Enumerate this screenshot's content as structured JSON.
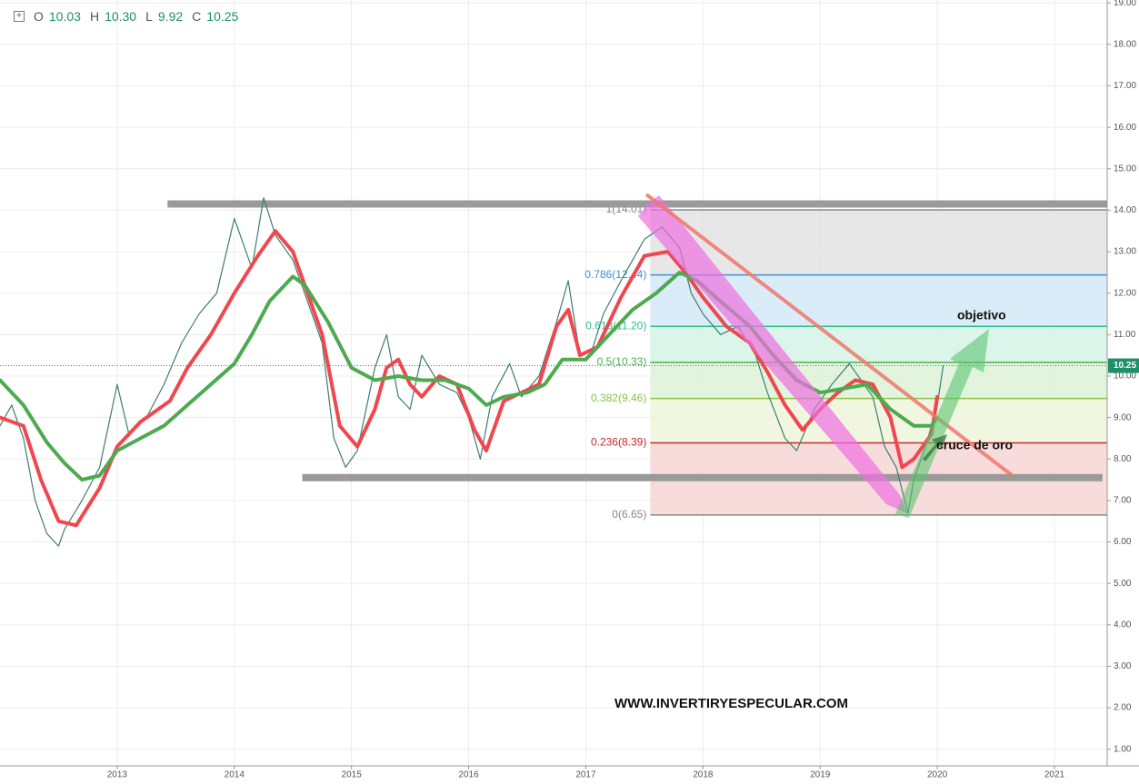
{
  "chart_data": {
    "type": "line",
    "ohlc": [
      {
        "label": "O",
        "value": "10.03"
      },
      {
        "label": "H",
        "value": "10.30"
      },
      {
        "label": "L",
        "value": "9.92"
      },
      {
        "label": "C",
        "value": "10.25"
      }
    ],
    "xlim": [
      2012.0,
      2021.45
    ],
    "xticks": [
      2013,
      2014,
      2015,
      2016,
      2017,
      2018,
      2019,
      2020,
      2021
    ],
    "ylim": [
      0.6,
      19.07
    ],
    "yticks": [
      {
        "value": 1,
        "label": "1.00"
      },
      {
        "value": 2,
        "label": "2.00"
      },
      {
        "value": 3,
        "label": "3.00"
      },
      {
        "value": 4,
        "label": "4.00"
      },
      {
        "value": 5,
        "label": "5.00"
      },
      {
        "value": 6,
        "label": "6.00"
      },
      {
        "value": 7,
        "label": "7.00"
      },
      {
        "value": 8,
        "label": "8.00"
      },
      {
        "value": 9,
        "label": "9.00"
      },
      {
        "value": 10,
        "label": "10.00"
      },
      {
        "value": 11,
        "label": "11.00"
      },
      {
        "value": 12,
        "label": "12.00"
      },
      {
        "value": 13,
        "label": "13.00"
      },
      {
        "value": 14,
        "label": "14.00"
      },
      {
        "value": 15,
        "label": "15.00"
      },
      {
        "value": 16,
        "label": "16.00"
      },
      {
        "value": 17,
        "label": "17.00"
      },
      {
        "value": 18,
        "label": "18.00"
      },
      {
        "value": 19,
        "label": "19.00"
      }
    ],
    "grid": true,
    "last_price": 10.25,
    "series": [
      {
        "color": "#3f7d6e",
        "width": 1.2,
        "x": [
          2012.0,
          2012.1,
          2012.2,
          2012.3,
          2012.4,
          2012.5,
          2012.55,
          2012.7,
          2012.85,
          2013.0,
          2013.1,
          2013.25,
          2013.4,
          2013.55,
          2013.7,
          2013.85,
          2014.0,
          2014.15,
          2014.25,
          2014.35,
          2014.5,
          2014.6,
          2014.75,
          2014.85,
          2014.95,
          2015.05,
          2015.2,
          2015.3,
          2015.4,
          2015.5,
          2015.6,
          2015.75,
          2015.9,
          2016.0,
          2016.1,
          2016.2,
          2016.35,
          2016.45,
          2016.6,
          2016.75,
          2016.85,
          2016.95,
          2017.05,
          2017.15,
          2017.3,
          2017.4,
          2017.5,
          2017.65,
          2017.8,
          2017.9,
          2018.0,
          2018.15,
          2018.3,
          2018.45,
          2018.55,
          2018.7,
          2018.8,
          2018.95,
          2019.1,
          2019.25,
          2019.35,
          2019.45,
          2019.55,
          2019.65,
          2019.75,
          2019.8,
          2019.9,
          2020.0,
          2020.05
        ],
        "values": [
          8.8,
          9.3,
          8.5,
          7.0,
          6.2,
          5.9,
          6.3,
          7.0,
          7.8,
          9.8,
          8.6,
          9.0,
          9.8,
          10.8,
          11.5,
          12.0,
          13.8,
          12.6,
          14.3,
          13.4,
          12.8,
          12.0,
          10.8,
          8.5,
          7.8,
          8.2,
          10.2,
          11.0,
          9.5,
          9.2,
          10.5,
          9.8,
          9.6,
          9.0,
          8.0,
          9.5,
          10.3,
          9.5,
          10.0,
          11.3,
          12.3,
          10.5,
          10.6,
          11.5,
          12.3,
          12.8,
          13.3,
          13.6,
          13.1,
          12.0,
          11.5,
          11.0,
          11.2,
          10.5,
          9.6,
          8.5,
          8.2,
          9.2,
          9.8,
          10.3,
          9.9,
          9.5,
          8.3,
          7.8,
          6.7,
          7.5,
          8.3,
          9.3,
          10.25
        ]
      },
      {
        "color": "#f0474f",
        "width": 4,
        "x": [
          2012.0,
          2012.2,
          2012.35,
          2012.5,
          2012.65,
          2012.85,
          2013.0,
          2013.2,
          2013.45,
          2013.6,
          2013.8,
          2014.0,
          2014.2,
          2014.35,
          2014.5,
          2014.6,
          2014.75,
          2014.9,
          2015.05,
          2015.2,
          2015.3,
          2015.4,
          2015.5,
          2015.6,
          2015.75,
          2015.9,
          2016.05,
          2016.15,
          2016.3,
          2016.45,
          2016.6,
          2016.75,
          2016.85,
          2016.95,
          2017.1,
          2017.3,
          2017.5,
          2017.7,
          2017.85,
          2018.0,
          2018.2,
          2018.4,
          2018.55,
          2018.7,
          2018.85,
          2019.0,
          2019.15,
          2019.3,
          2019.45,
          2019.6,
          2019.7,
          2019.8,
          2019.95,
          2020.0
        ],
        "values": [
          9.0,
          8.8,
          7.5,
          6.5,
          6.4,
          7.3,
          8.3,
          8.9,
          9.4,
          10.2,
          11.0,
          12.0,
          12.9,
          13.5,
          13.0,
          12.2,
          11.0,
          8.8,
          8.3,
          9.2,
          10.2,
          10.4,
          9.8,
          9.5,
          10.0,
          9.8,
          8.7,
          8.2,
          9.4,
          9.6,
          9.8,
          11.2,
          11.6,
          10.5,
          10.7,
          11.9,
          12.9,
          13.0,
          12.5,
          11.9,
          11.2,
          10.8,
          10.1,
          9.3,
          8.7,
          9.2,
          9.6,
          9.9,
          9.8,
          9.0,
          7.8,
          8.0,
          8.6,
          9.5
        ]
      },
      {
        "color": "#4caa4f",
        "width": 4,
        "x": [
          2012.0,
          2012.2,
          2012.4,
          2012.55,
          2012.7,
          2012.85,
          2013.0,
          2013.2,
          2013.4,
          2013.6,
          2013.8,
          2014.0,
          2014.15,
          2014.3,
          2014.5,
          2014.6,
          2014.8,
          2015.0,
          2015.2,
          2015.4,
          2015.6,
          2015.8,
          2016.0,
          2016.15,
          2016.3,
          2016.5,
          2016.65,
          2016.8,
          2017.0,
          2017.2,
          2017.4,
          2017.6,
          2017.8,
          2017.95,
          2018.15,
          2018.4,
          2018.6,
          2018.8,
          2019.0,
          2019.2,
          2019.4,
          2019.6,
          2019.8,
          2019.95,
          2020.0
        ],
        "values": [
          9.9,
          9.3,
          8.4,
          7.9,
          7.5,
          7.6,
          8.2,
          8.5,
          8.8,
          9.3,
          9.8,
          10.3,
          11.0,
          11.8,
          12.4,
          12.2,
          11.3,
          10.2,
          9.9,
          10.0,
          9.9,
          9.9,
          9.7,
          9.3,
          9.5,
          9.6,
          9.8,
          10.4,
          10.4,
          11.0,
          11.6,
          12.0,
          12.5,
          12.3,
          11.8,
          11.2,
          10.5,
          9.9,
          9.6,
          9.7,
          9.8,
          9.2,
          8.8,
          8.8,
          9.0
        ]
      }
    ],
    "hlines": [
      {
        "value": 14.15,
        "x": [
          2013.43,
          2021.45
        ]
      },
      {
        "value": 7.55,
        "x": [
          2014.58,
          2021.41
        ]
      }
    ],
    "fib_start": 2017.55,
    "fib_levels": [
      {
        "label": "1(14.01)",
        "value": 14.01,
        "color": "#888888",
        "fill": "#e3e3e3"
      },
      {
        "label": "0.786(12.44)",
        "value": 12.44,
        "color": "#3d8fd6",
        "fill": "#d4e9f6"
      },
      {
        "label": "0.618(11.20)",
        "value": 11.2,
        "color": "#2bbf8a",
        "fill": "#d6f3e6"
      },
      {
        "label": "0.5(10.33)",
        "value": 10.33,
        "color": "#4caf50",
        "fill": "#ddf2d8"
      },
      {
        "label": "0.382(9.46)",
        "value": 9.46,
        "color": "#8bc34a",
        "fill": "#eef5da"
      },
      {
        "label": "0.236(8.39)",
        "value": 8.39,
        "color": "#c62828",
        "fill": "#f7d6d6"
      },
      {
        "label": "0(6.65)",
        "value": 6.65,
        "color": "#888888",
        "fill": "#f7d6d6"
      }
    ],
    "annotations": [
      "objetivo",
      "cruce de oro",
      "WWW.INVERTIRYESPECULAR.COM"
    ]
  }
}
